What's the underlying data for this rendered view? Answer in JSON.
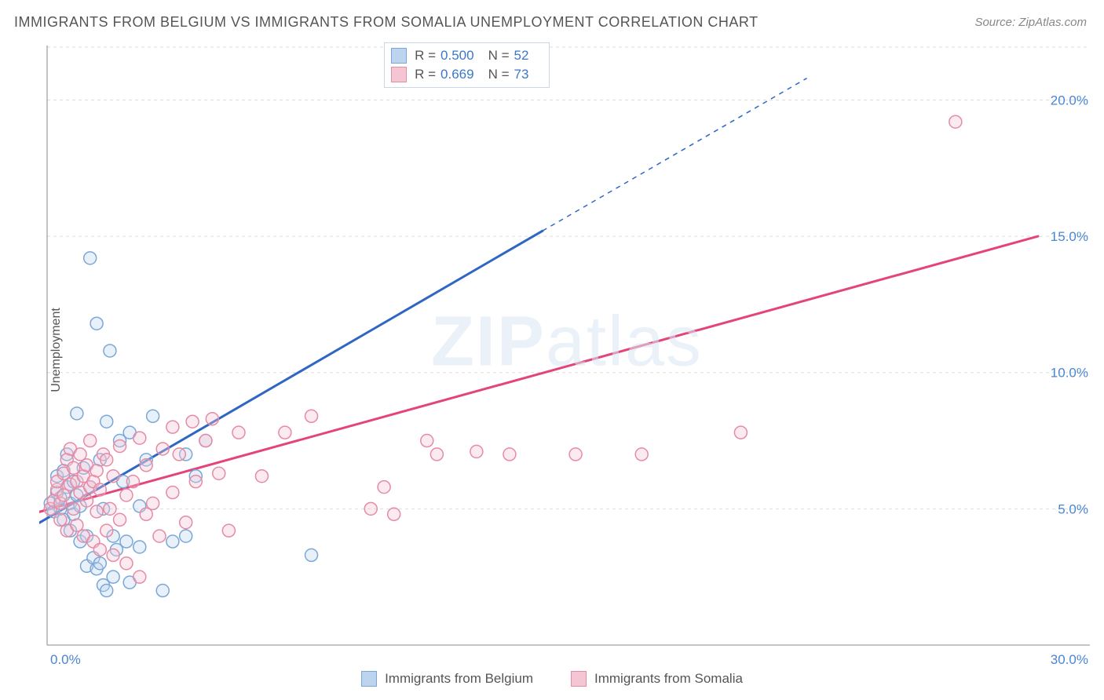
{
  "title": "IMMIGRANTS FROM BELGIUM VS IMMIGRANTS FROM SOMALIA UNEMPLOYMENT CORRELATION CHART",
  "source": "Source: ZipAtlas.com",
  "ylabel": "Unemployment",
  "watermark_a": "ZIP",
  "watermark_b": "atlas",
  "chart": {
    "type": "scatter-with-regression",
    "xlim": [
      0,
      30
    ],
    "ylim": [
      0,
      22
    ],
    "x_ticks": [
      0,
      30
    ],
    "x_tick_labels": [
      "0.0%",
      "30.0%"
    ],
    "y_ticks": [
      5,
      10,
      15,
      20
    ],
    "y_tick_labels": [
      "5.0%",
      "10.0%",
      "15.0%",
      "20.0%"
    ],
    "y_grid_dash": "4,4",
    "background_color": "#ffffff",
    "grid_color": "#dddddd",
    "axis_color": "#888888",
    "tick_label_color": "#4a86d0",
    "marker_radius": 8,
    "marker_stroke_width": 1.5,
    "marker_fill_opacity": 0.35,
    "series": [
      {
        "name": "Immigrants from Belgium",
        "color_stroke": "#7ba7d6",
        "color_fill": "#bcd4ee",
        "regression": {
          "x1": -0.5,
          "y1": 4.3,
          "x2": 15.0,
          "y2": 15.2,
          "extend_x2": 23.0,
          "extend_y2": 20.8,
          "solid_color": "#2f66c4",
          "width": 3
        },
        "points": [
          [
            0.1,
            5.2
          ],
          [
            0.2,
            4.9
          ],
          [
            0.3,
            5.6
          ],
          [
            0.3,
            6.2
          ],
          [
            0.4,
            5.0
          ],
          [
            0.4,
            5.4
          ],
          [
            0.5,
            4.6
          ],
          [
            0.5,
            6.4
          ],
          [
            0.6,
            5.8
          ],
          [
            0.6,
            7.0
          ],
          [
            0.7,
            4.2
          ],
          [
            0.7,
            5.2
          ],
          [
            0.8,
            4.8
          ],
          [
            0.8,
            6.0
          ],
          [
            0.9,
            5.5
          ],
          [
            0.9,
            8.5
          ],
          [
            1.0,
            3.8
          ],
          [
            1.0,
            5.1
          ],
          [
            1.1,
            6.5
          ],
          [
            1.2,
            4.0
          ],
          [
            1.2,
            2.9
          ],
          [
            1.3,
            5.8
          ],
          [
            1.3,
            14.2
          ],
          [
            1.4,
            3.2
          ],
          [
            1.5,
            2.8
          ],
          [
            1.5,
            11.8
          ],
          [
            1.6,
            3.0
          ],
          [
            1.6,
            6.8
          ],
          [
            1.7,
            2.2
          ],
          [
            1.7,
            5.0
          ],
          [
            1.8,
            2.0
          ],
          [
            1.8,
            8.2
          ],
          [
            1.9,
            10.8
          ],
          [
            2.0,
            4.0
          ],
          [
            2.0,
            2.5
          ],
          [
            2.1,
            3.5
          ],
          [
            2.2,
            7.5
          ],
          [
            2.3,
            6.0
          ],
          [
            2.4,
            3.8
          ],
          [
            2.5,
            7.8
          ],
          [
            2.5,
            2.3
          ],
          [
            2.8,
            3.6
          ],
          [
            2.8,
            5.1
          ],
          [
            3.0,
            6.8
          ],
          [
            3.2,
            8.4
          ],
          [
            3.5,
            2.0
          ],
          [
            3.8,
            3.8
          ],
          [
            4.2,
            4.0
          ],
          [
            4.2,
            7.0
          ],
          [
            4.5,
            6.2
          ],
          [
            4.8,
            7.5
          ],
          [
            8.0,
            3.3
          ]
        ]
      },
      {
        "name": "Immigrants from Somalia",
        "color_stroke": "#e68aa5",
        "color_fill": "#f4c6d4",
        "regression": {
          "x1": -0.5,
          "y1": 4.8,
          "x2": 30.0,
          "y2": 15.0,
          "solid_color": "#e3447a",
          "width": 3
        },
        "points": [
          [
            0.1,
            5.0
          ],
          [
            0.2,
            5.3
          ],
          [
            0.3,
            5.7
          ],
          [
            0.3,
            6.0
          ],
          [
            0.4,
            5.2
          ],
          [
            0.4,
            4.6
          ],
          [
            0.5,
            6.3
          ],
          [
            0.5,
            5.5
          ],
          [
            0.6,
            6.8
          ],
          [
            0.6,
            4.2
          ],
          [
            0.7,
            5.9
          ],
          [
            0.7,
            7.2
          ],
          [
            0.8,
            6.5
          ],
          [
            0.8,
            5.0
          ],
          [
            0.9,
            6.0
          ],
          [
            0.9,
            4.4
          ],
          [
            1.0,
            7.0
          ],
          [
            1.0,
            5.6
          ],
          [
            1.1,
            6.2
          ],
          [
            1.1,
            4.0
          ],
          [
            1.2,
            5.3
          ],
          [
            1.2,
            6.6
          ],
          [
            1.3,
            5.8
          ],
          [
            1.3,
            7.5
          ],
          [
            1.4,
            3.8
          ],
          [
            1.4,
            6.0
          ],
          [
            1.5,
            4.9
          ],
          [
            1.5,
            6.4
          ],
          [
            1.6,
            3.5
          ],
          [
            1.6,
            5.7
          ],
          [
            1.7,
            7.0
          ],
          [
            1.8,
            4.2
          ],
          [
            1.8,
            6.8
          ],
          [
            1.9,
            5.0
          ],
          [
            2.0,
            3.3
          ],
          [
            2.0,
            6.2
          ],
          [
            2.2,
            4.6
          ],
          [
            2.2,
            7.3
          ],
          [
            2.4,
            5.5
          ],
          [
            2.4,
            3.0
          ],
          [
            2.6,
            6.0
          ],
          [
            2.8,
            2.5
          ],
          [
            2.8,
            7.6
          ],
          [
            3.0,
            4.8
          ],
          [
            3.0,
            6.6
          ],
          [
            3.2,
            5.2
          ],
          [
            3.4,
            4.0
          ],
          [
            3.5,
            7.2
          ],
          [
            3.8,
            8.0
          ],
          [
            3.8,
            5.6
          ],
          [
            4.0,
            7.0
          ],
          [
            4.2,
            4.5
          ],
          [
            4.4,
            8.2
          ],
          [
            4.5,
            6.0
          ],
          [
            4.8,
            7.5
          ],
          [
            5.0,
            8.3
          ],
          [
            5.2,
            6.3
          ],
          [
            5.5,
            4.2
          ],
          [
            5.8,
            7.8
          ],
          [
            6.5,
            6.2
          ],
          [
            7.2,
            7.8
          ],
          [
            8.0,
            8.4
          ],
          [
            9.8,
            5.0
          ],
          [
            10.2,
            5.8
          ],
          [
            10.5,
            4.8
          ],
          [
            11.5,
            7.5
          ],
          [
            11.8,
            7.0
          ],
          [
            13.0,
            7.1
          ],
          [
            14.0,
            7.0
          ],
          [
            16.0,
            7.0
          ],
          [
            18.0,
            7.0
          ],
          [
            21.0,
            7.8
          ],
          [
            27.5,
            19.2
          ]
        ]
      }
    ]
  },
  "info_box": {
    "rows": [
      {
        "swatch_fill": "#bcd4ee",
        "swatch_stroke": "#7ba7d6",
        "r": "0.500",
        "n": "52"
      },
      {
        "swatch_fill": "#f4c6d4",
        "swatch_stroke": "#e68aa5",
        "r": "0.669",
        "n": "73"
      }
    ],
    "r_label": "R =",
    "n_label": "N ="
  },
  "legend": {
    "items": [
      {
        "label": "Immigrants from Belgium",
        "fill": "#bcd4ee",
        "stroke": "#7ba7d6"
      },
      {
        "label": "Immigrants from Somalia",
        "fill": "#f4c6d4",
        "stroke": "#e68aa5"
      }
    ]
  }
}
